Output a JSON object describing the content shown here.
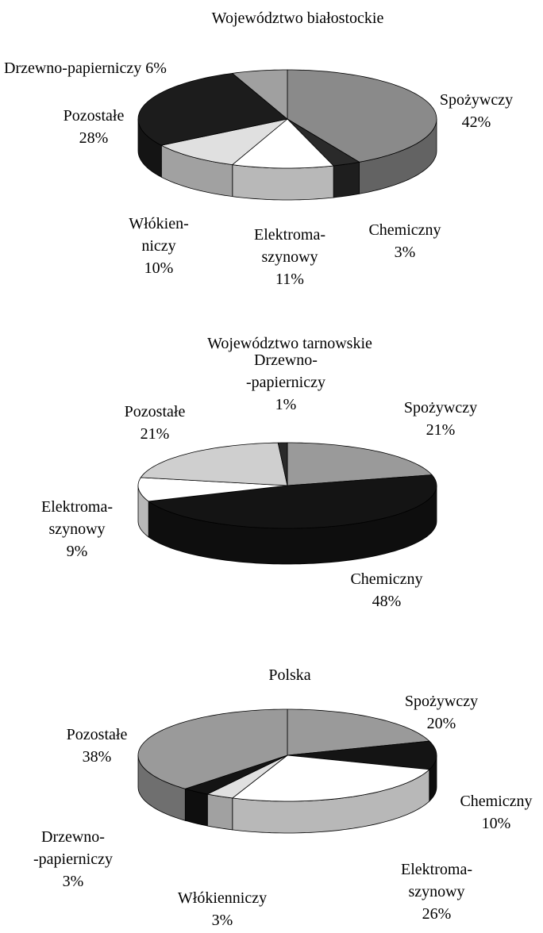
{
  "chart_data": [
    {
      "type": "pie3d",
      "title": "Województwo białostockie",
      "categories": [
        "Spożywczy",
        "Chemiczny",
        "Elektroma-\nszynowy",
        "Włókien-\nniczy",
        "Pozostałe",
        "Drzewno-papierniczy"
      ],
      "values": [
        42,
        3,
        11,
        10,
        28,
        6
      ],
      "value_labels": [
        "42%",
        "3%",
        "11%",
        "10%",
        "28%",
        "6%"
      ],
      "colors": [
        "#8a8a8a",
        "#2a2a2a",
        "#ffffff",
        "#e0e0e0",
        "#1c1c1c",
        "#a0a0a0"
      ]
    },
    {
      "type": "pie3d",
      "title": "Województwo tarnowskie",
      "categories": [
        "Spożywczy",
        "Chemiczny",
        "Elektroma-\nszynowy",
        "Pozostałe",
        "Drzewno-\n-papierniczy"
      ],
      "values": [
        21,
        48,
        9,
        21,
        1
      ],
      "value_labels": [
        "21%",
        "48%",
        "9%",
        "21%",
        "1%"
      ],
      "colors": [
        "#9a9a9a",
        "#141414",
        "#ffffff",
        "#cfcfcf",
        "#2a2a2a"
      ]
    },
    {
      "type": "pie3d",
      "title": "Polska",
      "categories": [
        "Spożywczy",
        "Chemiczny",
        "Elektroma-\nszynowy",
        "Włókienniczy",
        "Drzewno-\n-papierniczy",
        "Pozostałe"
      ],
      "values": [
        20,
        10,
        26,
        3,
        3,
        38
      ],
      "value_labels": [
        "20%",
        "10%",
        "26%",
        "3%",
        "3%",
        "38%"
      ],
      "colors": [
        "#9a9a9a",
        "#141414",
        "#ffffff",
        "#e0e0e0",
        "#141414",
        "#9a9a9a"
      ]
    }
  ]
}
